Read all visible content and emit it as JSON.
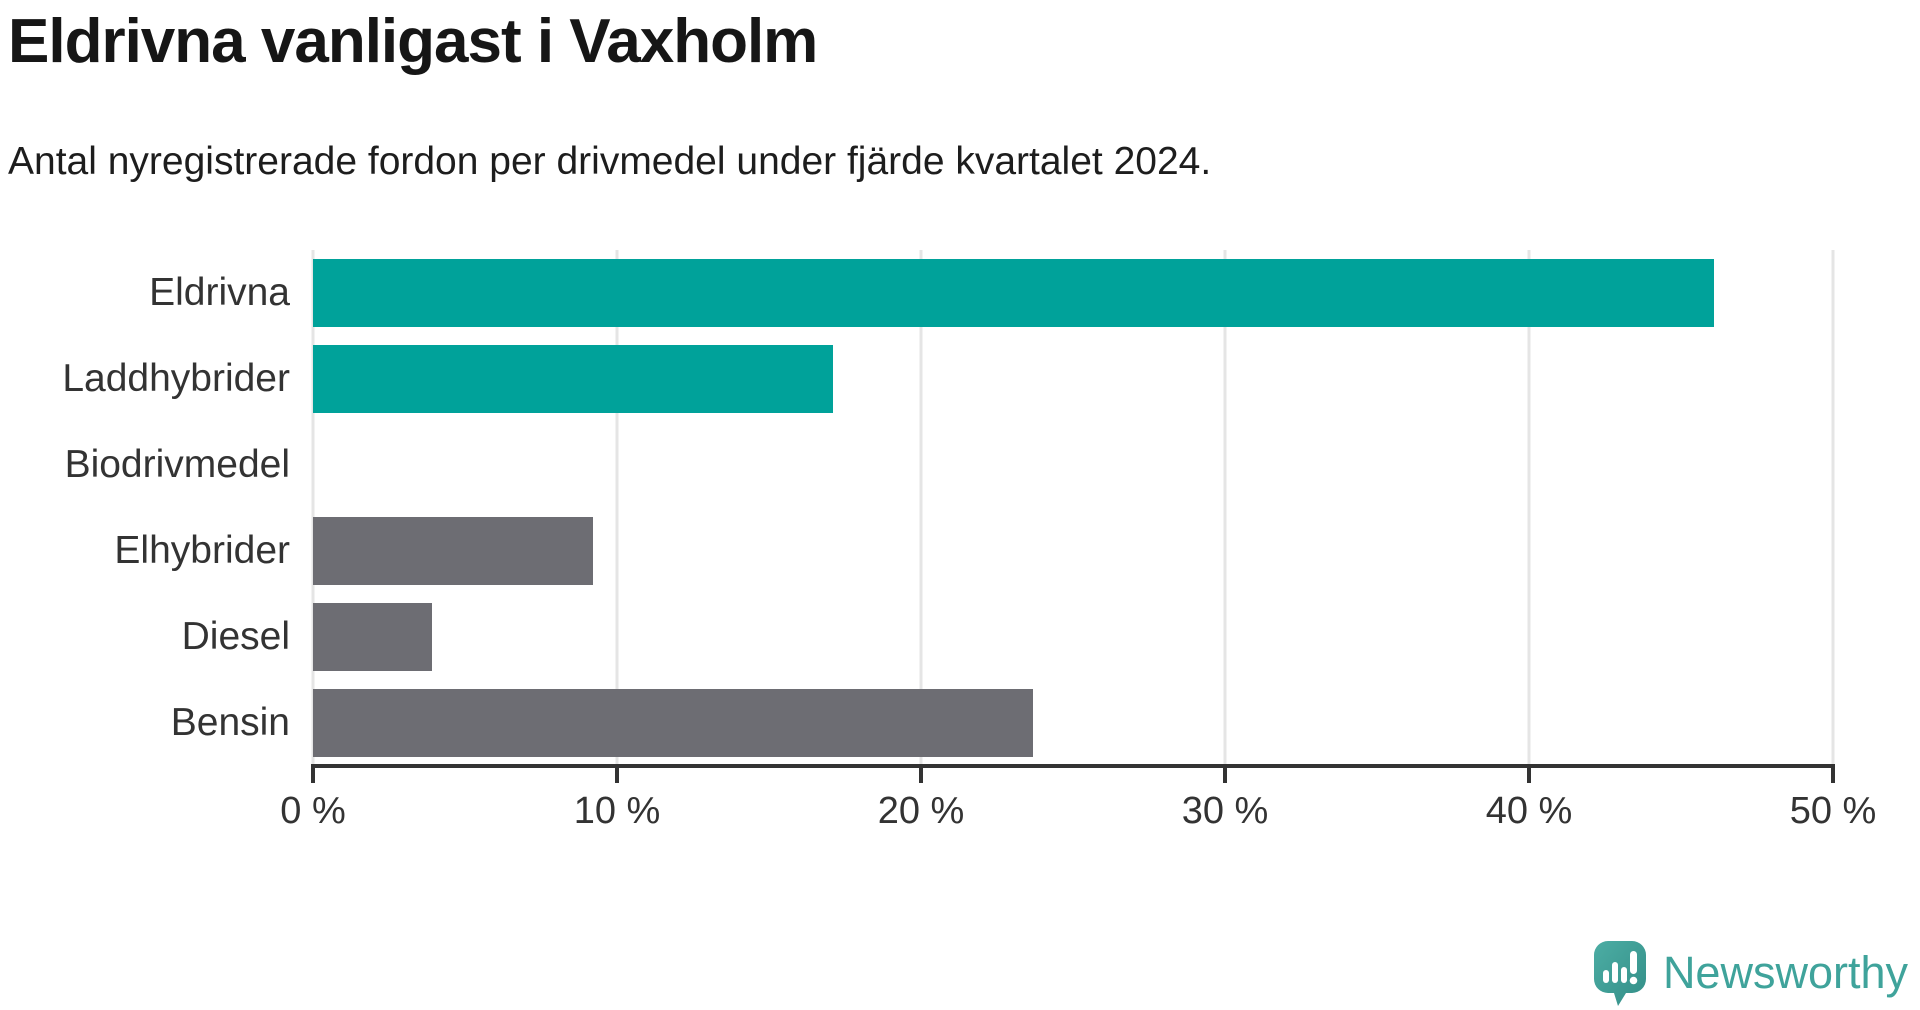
{
  "header": {
    "title": "Eldrivna vanligast i Vaxholm",
    "subtitle": "Antal nyregistrerade fordon per drivmedel under fjärde kvartalet 2024."
  },
  "chart_data": {
    "type": "bar",
    "orientation": "horizontal",
    "title": "Eldrivna vanligast i Vaxholm",
    "subtitle": "Antal nyregistrerade fordon per drivmedel under fjärde kvartalet 2024.",
    "categories": [
      "Eldrivna",
      "Laddhybrider",
      "Biodrivmedel",
      "Elhybrider",
      "Diesel",
      "Bensin"
    ],
    "values": [
      46.1,
      17.1,
      0,
      9.2,
      3.9,
      23.7
    ],
    "unit": "%",
    "bar_colors": [
      "#00a29a",
      "#00a29a",
      "#6d6d73",
      "#6d6d73",
      "#6d6d73",
      "#6d6d73"
    ],
    "highlight_color": "#00a29a",
    "default_color": "#6d6d73",
    "xlim": [
      0,
      50
    ],
    "x_tick_labels": [
      "0 %",
      "10 %",
      "20 %",
      "30 %",
      "40 %",
      "50 %"
    ],
    "grid": "vertical-only",
    "gridline_color": "#e5e5e5",
    "axis_color": "#333333",
    "legend": "none"
  },
  "branding": {
    "logo_text": "Newsworthy",
    "logo_color": "#3fa39b"
  }
}
